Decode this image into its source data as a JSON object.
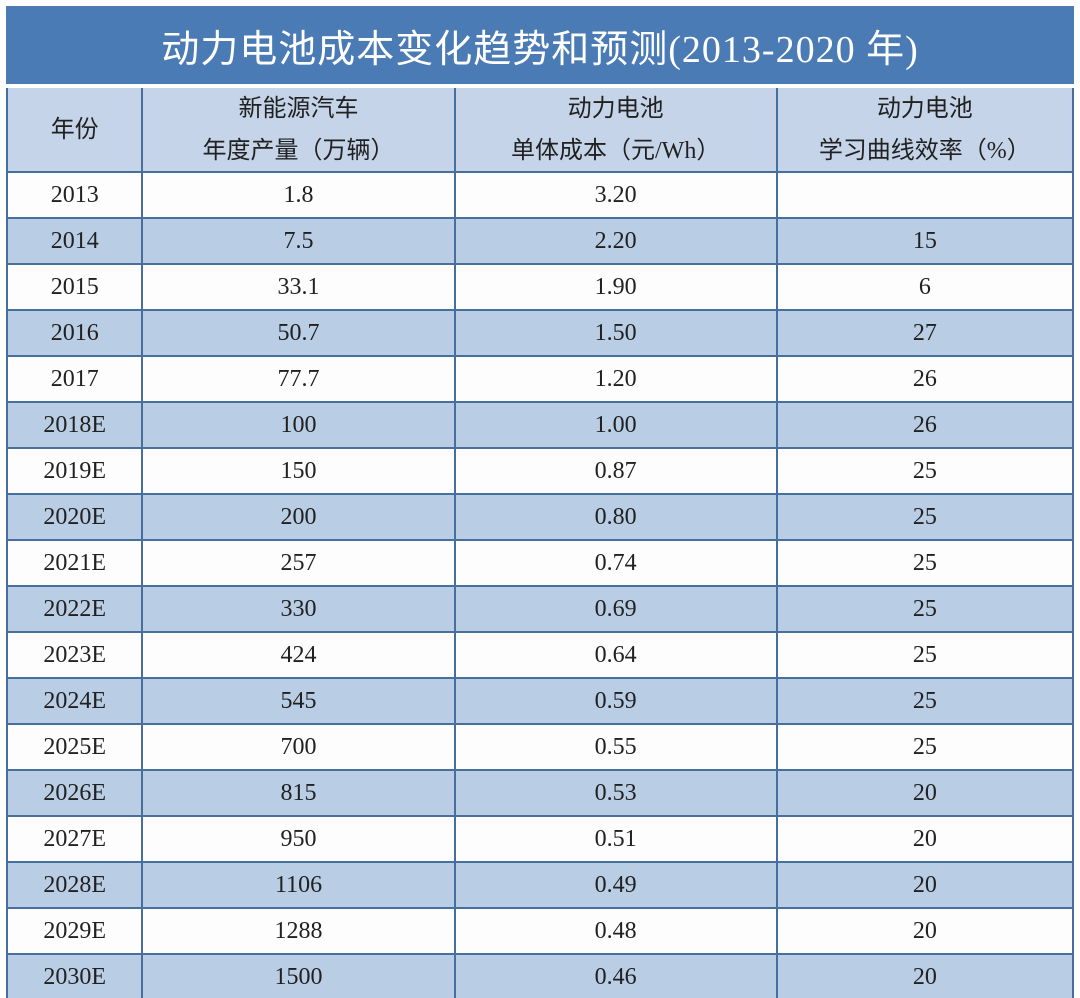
{
  "title": "动力电池成本变化趋势和预测(2013-2020 年)",
  "headers": [
    {
      "lines": [
        "年份"
      ]
    },
    {
      "lines": [
        "新能源汽车",
        "年度产量（万辆）"
      ]
    },
    {
      "lines": [
        "动力电池",
        "单体成本（元/Wh）"
      ]
    },
    {
      "lines": [
        "动力电池",
        "学习曲线效率（%）"
      ]
    }
  ],
  "chart_data": {
    "type": "table",
    "title": "动力电池成本变化趋势和预测(2013-2020 年)",
    "columns": [
      "年份",
      "新能源汽车年度产量（万辆）",
      "动力电池单体成本（元/Wh）",
      "动力电池学习曲线效率（%）"
    ],
    "rows": [
      [
        "2013",
        "1.8",
        "3.20",
        ""
      ],
      [
        "2014",
        "7.5",
        "2.20",
        "15"
      ],
      [
        "2015",
        "33.1",
        "1.90",
        "6"
      ],
      [
        "2016",
        "50.7",
        "1.50",
        "27"
      ],
      [
        "2017",
        "77.7",
        "1.20",
        "26"
      ],
      [
        "2018E",
        "100",
        "1.00",
        "26"
      ],
      [
        "2019E",
        "150",
        "0.87",
        "25"
      ],
      [
        "2020E",
        "200",
        "0.80",
        "25"
      ],
      [
        "2021E",
        "257",
        "0.74",
        "25"
      ],
      [
        "2022E",
        "330",
        "0.69",
        "25"
      ],
      [
        "2023E",
        "424",
        "0.64",
        "25"
      ],
      [
        "2024E",
        "545",
        "0.59",
        "25"
      ],
      [
        "2025E",
        "700",
        "0.55",
        "25"
      ],
      [
        "2026E",
        "815",
        "0.53",
        "20"
      ],
      [
        "2027E",
        "950",
        "0.51",
        "20"
      ],
      [
        "2028E",
        "1106",
        "0.49",
        "20"
      ],
      [
        "2029E",
        "1288",
        "0.48",
        "20"
      ],
      [
        "2030E",
        "1500",
        "0.46",
        "20"
      ]
    ]
  },
  "colors": {
    "title_bg": "#4b7bb5",
    "title_text": "#ffffff",
    "header_bg": "#c5d4e8",
    "row_bg": "#fdfdfe",
    "row_alt_bg": "#b9cde5",
    "border": "#466f9d",
    "text": "#212121"
  }
}
